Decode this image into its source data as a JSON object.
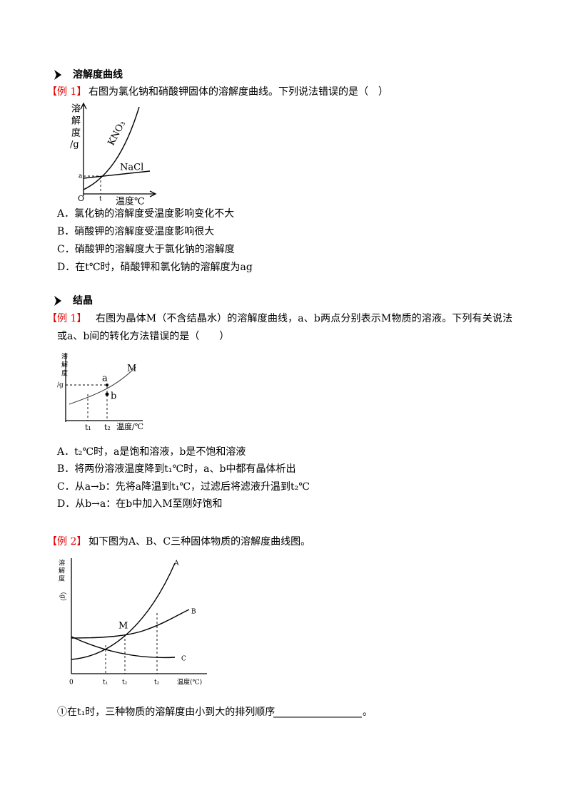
{
  "sections": [
    {
      "heading": "溶解度曲线",
      "example": {
        "tag": "【例 1】",
        "question": [
          "右图为氯化钠和硝酸钾固体的溶解度曲线。下列说法错误的是（　）"
        ],
        "figure": {
          "y_label": [
            "溶",
            "解",
            "度",
            "/g"
          ],
          "curves": [
            "KNO₃",
            "NaCl"
          ],
          "points": [
            "a",
            "O",
            "t"
          ],
          "x_label": "温度℃"
        },
        "options": [
          "A．氯化钠的溶解度受温度影响变化不大",
          "B．硝酸钾的溶解度受温度影响很大",
          "C．硝酸钾的溶解度大于氯化钠的溶解度",
          "D．在t℃时，硝酸钾和氯化钠的溶解度为ag"
        ]
      }
    },
    {
      "heading": "结晶",
      "example": {
        "tag": "【例 1】",
        "question": [
          "右图为晶体M（不含结晶水）的溶解度曲线，a、b两点分别表示M物质的溶液。下列有关说法",
          "或a、b间的转化方法错误的是（　　）"
        ],
        "figure": {
          "y_label": [
            "溶",
            "解",
            "度",
            "/g"
          ],
          "curves": [
            "M"
          ],
          "points": [
            "a",
            "b",
            "t₁",
            "t₂"
          ],
          "x_label": "温度/℃"
        },
        "options": [
          "A．t₂℃时，a是饱和溶液，b是不饱和溶液",
          "B．将两份溶液温度降到t₁℃时，a、b中都有晶体析出",
          "C．从a→b：先将a降温到t₁℃，过滤后将滤液升温到t₂℃",
          "D．从b→a：在b中加入M至刚好饱和"
        ]
      }
    },
    {
      "example": {
        "tag": "【例 2】",
        "question": [
          "如下图为A、B、C三种固体物质的溶解度曲线图。"
        ],
        "figure": {
          "y_label": [
            "溶",
            "解",
            "度",
            "（g）"
          ],
          "curves": [
            "A",
            "B",
            "C"
          ],
          "points": [
            "M",
            "0",
            "t₁",
            "t₂",
            "t₂"
          ],
          "x_label": "温度(℃)"
        },
        "sub_question": [
          "①在t₁时，三种物质的溶解度由小到大的排列顺序",
          "。"
        ]
      }
    }
  ]
}
